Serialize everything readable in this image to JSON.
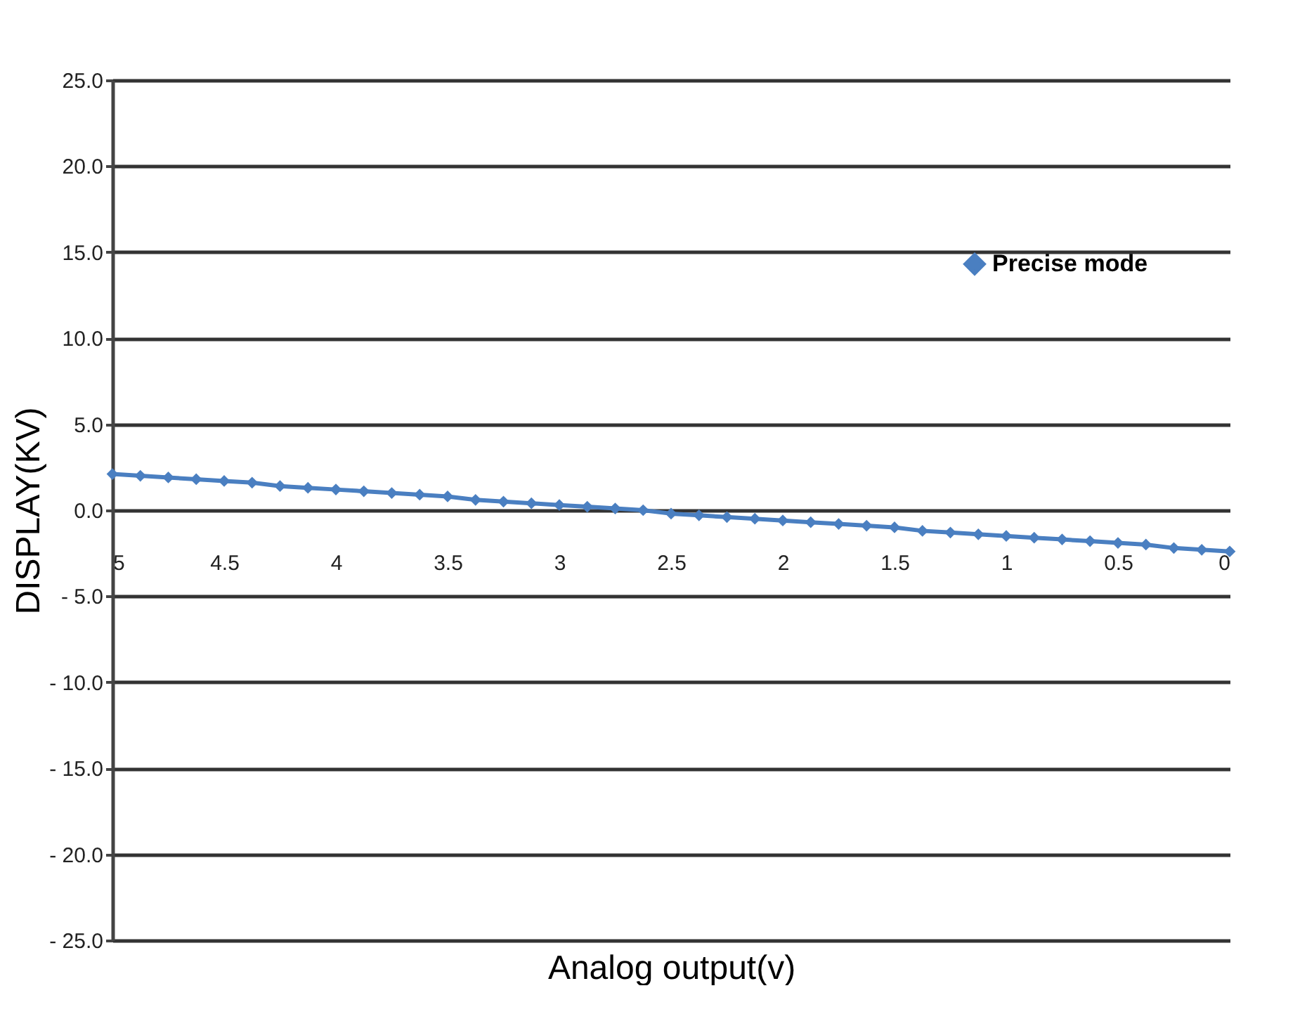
{
  "chart_data": {
    "type": "line",
    "xlabel": "Analog output(v)",
    "ylabel": "DISPLAY(KV)",
    "x": [
      5,
      4.875,
      4.75,
      4.625,
      4.5,
      4.375,
      4.25,
      4.125,
      4,
      3.875,
      3.75,
      3.625,
      3.5,
      3.375,
      3.25,
      3.125,
      3,
      2.875,
      2.75,
      2.625,
      2.5,
      2.375,
      2.25,
      2.125,
      2,
      1.875,
      1.75,
      1.625,
      1.5,
      1.375,
      1.25,
      1.125,
      1,
      0.875,
      0.75,
      0.625,
      0.5,
      0.375,
      0.25,
      0.125,
      0
    ],
    "series": [
      {
        "name": "Precise mode",
        "color": "#4a7fc1",
        "values": [
          2.1,
          2.0,
          1.9,
          1.8,
          1.7,
          1.6,
          1.4,
          1.3,
          1.2,
          1.1,
          1.0,
          0.9,
          0.8,
          0.6,
          0.5,
          0.4,
          0.3,
          0.2,
          0.1,
          0.0,
          -0.2,
          -0.3,
          -0.4,
          -0.5,
          -0.6,
          -0.7,
          -0.8,
          -0.9,
          -1.0,
          -1.2,
          -1.3,
          -1.4,
          -1.5,
          -1.6,
          -1.7,
          -1.8,
          -1.9,
          -2.0,
          -2.2,
          -2.3,
          -2.4
        ]
      }
    ],
    "xlim": [
      5,
      0
    ],
    "xticks": [
      5,
      4.5,
      4,
      3.5,
      3,
      2.5,
      2,
      1.5,
      1,
      0.5,
      0
    ],
    "ylim": [
      -25,
      25
    ],
    "yticks": [
      {
        "value": 25,
        "label": "25.0"
      },
      {
        "value": 20,
        "label": "20.0"
      },
      {
        "value": 15,
        "label": "15.0"
      },
      {
        "value": 10,
        "label": "10.0"
      },
      {
        "value": 5,
        "label": "5.0"
      },
      {
        "value": 0,
        "label": "0.0"
      },
      {
        "value": -5,
        "label": "- 5.0"
      },
      {
        "value": -10,
        "label": "- 10.0"
      },
      {
        "value": -15,
        "label": "- 15.0"
      },
      {
        "value": -20,
        "label": "- 20.0"
      },
      {
        "value": -25,
        "label": "- 25.0"
      }
    ],
    "grid": "y",
    "legend": "right",
    "marker": "diamond",
    "line_style": "solid"
  }
}
